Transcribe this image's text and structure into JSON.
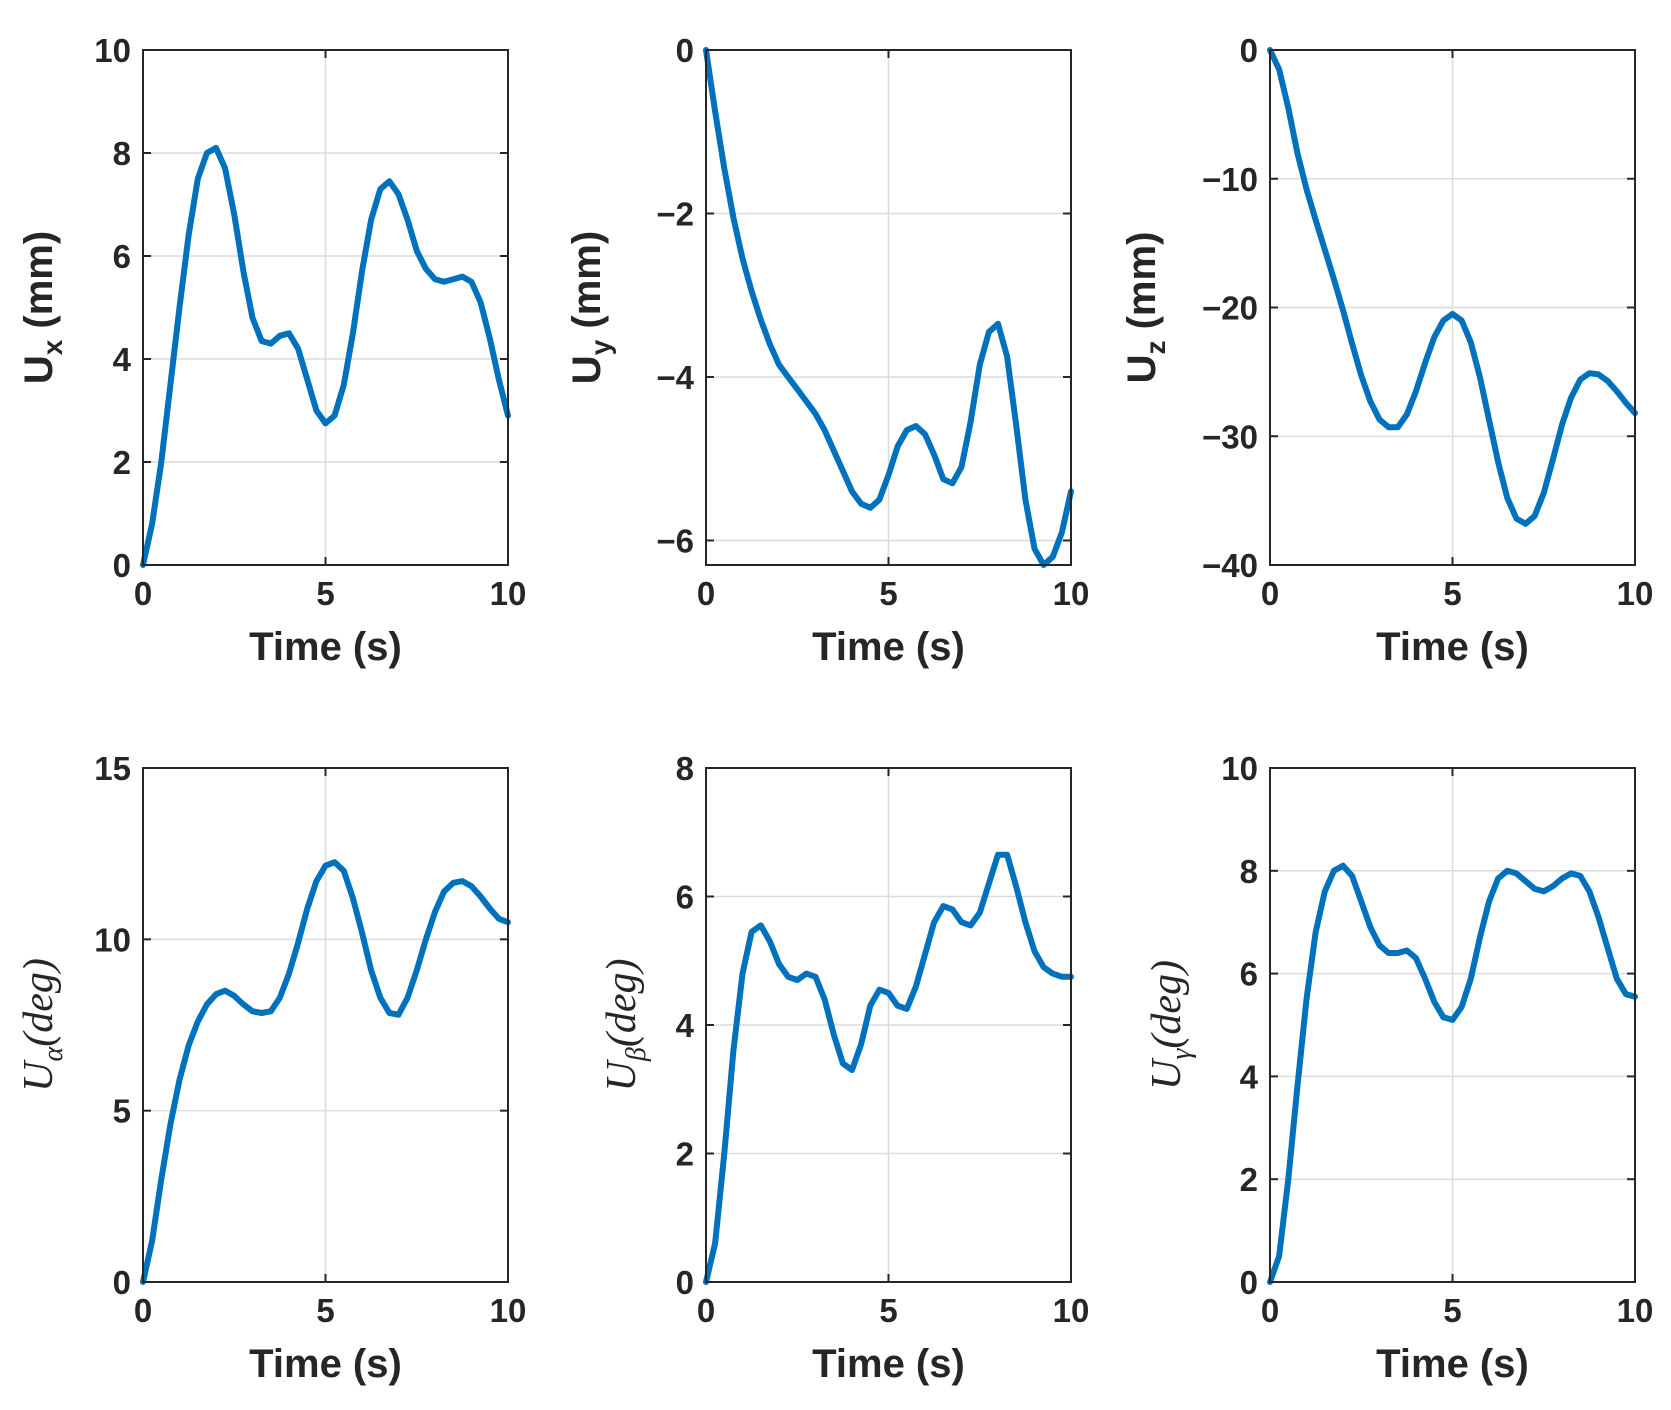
{
  "colors": {
    "series": "#0072BD",
    "axis": "#262626",
    "grid": "#dcdcdc"
  },
  "chart_data": [
    {
      "type": "line",
      "xlabel": "Time (s)",
      "ylabel": {
        "base": "U",
        "sub": "x",
        "unit": " (mm)"
      },
      "xlim": [
        0,
        10
      ],
      "ylim": [
        0,
        10
      ],
      "xticks": [
        0,
        5,
        10
      ],
      "yticks": [
        0,
        2,
        4,
        6,
        8,
        10
      ],
      "xtick_labels": [
        "0",
        "5",
        "10"
      ],
      "ytick_labels": [
        "0",
        "2",
        "4",
        "6",
        "8",
        "10"
      ],
      "grid": true,
      "series": [
        {
          "name": "Ux",
          "x": [
            0,
            0.25,
            0.5,
            0.75,
            1,
            1.25,
            1.5,
            1.75,
            2,
            2.25,
            2.5,
            2.75,
            3,
            3.25,
            3.5,
            3.75,
            4,
            4.25,
            4.5,
            4.75,
            5,
            5.25,
            5.5,
            5.75,
            6,
            6.25,
            6.5,
            6.75,
            7,
            7.25,
            7.5,
            7.75,
            8,
            8.25,
            8.5,
            8.75,
            9,
            9.25,
            9.5,
            9.75,
            10
          ],
          "y": [
            0,
            0.8,
            2,
            3.5,
            5,
            6.4,
            7.5,
            8.0,
            8.1,
            7.7,
            6.8,
            5.7,
            4.8,
            4.35,
            4.3,
            4.45,
            4.5,
            4.2,
            3.6,
            3.0,
            2.75,
            2.9,
            3.5,
            4.5,
            5.7,
            6.7,
            7.3,
            7.45,
            7.2,
            6.7,
            6.1,
            5.75,
            5.55,
            5.5,
            5.55,
            5.6,
            5.5,
            5.1,
            4.4,
            3.6,
            2.9
          ]
        }
      ]
    },
    {
      "type": "line",
      "xlabel": "Time (s)",
      "ylabel": {
        "base": "U",
        "sub": "y",
        "unit": " (mm)"
      },
      "xlim": [
        0,
        10
      ],
      "ylim": [
        -6.3,
        0
      ],
      "xticks": [
        0,
        5,
        10
      ],
      "yticks": [
        -6,
        -4,
        -2,
        0
      ],
      "xtick_labels": [
        "0",
        "5",
        "10"
      ],
      "ytick_labels": [
        "−6",
        "−4",
        "−2",
        "0"
      ],
      "grid": true,
      "series": [
        {
          "name": "Uy",
          "x": [
            0,
            0.25,
            0.5,
            0.75,
            1,
            1.25,
            1.5,
            1.75,
            2,
            2.25,
            2.5,
            2.75,
            3,
            3.25,
            3.5,
            3.75,
            4,
            4.25,
            4.5,
            4.75,
            5,
            5.25,
            5.5,
            5.75,
            6,
            6.25,
            6.5,
            6.75,
            7,
            7.25,
            7.5,
            7.75,
            8,
            8.25,
            8.5,
            8.75,
            9,
            9.25,
            9.5,
            9.75,
            10
          ],
          "y": [
            0,
            -0.75,
            -1.45,
            -2.05,
            -2.55,
            -2.95,
            -3.3,
            -3.6,
            -3.85,
            -4.0,
            -4.15,
            -4.3,
            -4.45,
            -4.65,
            -4.9,
            -5.15,
            -5.4,
            -5.55,
            -5.6,
            -5.5,
            -5.2,
            -4.85,
            -4.65,
            -4.6,
            -4.7,
            -4.95,
            -5.25,
            -5.3,
            -5.1,
            -4.55,
            -3.85,
            -3.45,
            -3.35,
            -3.75,
            -4.6,
            -5.5,
            -6.1,
            -6.3,
            -6.2,
            -5.9,
            -5.4
          ]
        }
      ]
    },
    {
      "type": "line",
      "xlabel": "Time (s)",
      "ylabel": {
        "base": "U",
        "sub": "z",
        "unit": " (mm)"
      },
      "xlim": [
        0,
        10
      ],
      "ylim": [
        -40,
        0
      ],
      "xticks": [
        0,
        5,
        10
      ],
      "yticks": [
        -40,
        -30,
        -20,
        -10,
        0
      ],
      "xtick_labels": [
        "0",
        "5",
        "10"
      ],
      "ytick_labels": [
        "−40",
        "−30",
        "−20",
        "−10",
        "0"
      ],
      "grid": true,
      "series": [
        {
          "name": "Uz",
          "x": [
            0,
            0.25,
            0.5,
            0.75,
            1,
            1.25,
            1.5,
            1.75,
            2,
            2.25,
            2.5,
            2.75,
            3,
            3.25,
            3.5,
            3.75,
            4,
            4.25,
            4.5,
            4.75,
            5,
            5.25,
            5.5,
            5.75,
            6,
            6.25,
            6.5,
            6.75,
            7,
            7.25,
            7.5,
            7.75,
            8,
            8.25,
            8.5,
            8.75,
            9,
            9.25,
            9.5,
            9.75,
            10
          ],
          "y": [
            0,
            -1.5,
            -4.5,
            -8,
            -10.8,
            -13.2,
            -15.5,
            -17.8,
            -20.2,
            -22.8,
            -25.3,
            -27.3,
            -28.7,
            -29.3,
            -29.3,
            -28.3,
            -26.5,
            -24.3,
            -22.3,
            -21,
            -20.5,
            -21,
            -22.7,
            -25.4,
            -28.7,
            -32,
            -34.8,
            -36.4,
            -36.8,
            -36.2,
            -34.4,
            -31.8,
            -29.1,
            -27,
            -25.6,
            -25.1,
            -25.2,
            -25.7,
            -26.5,
            -27.4,
            -28.2
          ]
        }
      ]
    },
    {
      "type": "line",
      "xlabel": "Time (s)",
      "ylabel": {
        "base": "U",
        "sub": "α",
        "unit": "(deg)"
      },
      "xlim": [
        0,
        10
      ],
      "ylim": [
        0,
        15
      ],
      "xticks": [
        0,
        5,
        10
      ],
      "yticks": [
        0,
        5,
        10,
        15
      ],
      "xtick_labels": [
        "0",
        "5",
        "10"
      ],
      "ytick_labels": [
        "0",
        "5",
        "10",
        "15"
      ],
      "grid": true,
      "series": [
        {
          "name": "Ualpha",
          "x": [
            0,
            0.25,
            0.5,
            0.75,
            1,
            1.25,
            1.5,
            1.75,
            2,
            2.25,
            2.5,
            2.75,
            3,
            3.25,
            3.5,
            3.75,
            4,
            4.25,
            4.5,
            4.75,
            5,
            5.25,
            5.5,
            5.75,
            6,
            6.25,
            6.5,
            6.75,
            7,
            7.25,
            7.5,
            7.75,
            8,
            8.25,
            8.5,
            8.75,
            9,
            9.25,
            9.5,
            9.75,
            10
          ],
          "y": [
            0,
            1.2,
            3,
            4.6,
            5.9,
            6.9,
            7.6,
            8.1,
            8.4,
            8.5,
            8.35,
            8.1,
            7.9,
            7.85,
            7.9,
            8.3,
            9.0,
            9.9,
            10.9,
            11.7,
            12.15,
            12.25,
            12.0,
            11.2,
            10.2,
            9.1,
            8.3,
            7.85,
            7.8,
            8.3,
            9.1,
            10.0,
            10.8,
            11.4,
            11.65,
            11.7,
            11.55,
            11.25,
            10.9,
            10.6,
            10.5
          ]
        }
      ]
    },
    {
      "type": "line",
      "xlabel": "Time (s)",
      "ylabel": {
        "base": "U",
        "sub": "β",
        "unit": "(deg)"
      },
      "xlim": [
        0,
        10
      ],
      "ylim": [
        0,
        8
      ],
      "xticks": [
        0,
        5,
        10
      ],
      "yticks": [
        0,
        2,
        4,
        6,
        8
      ],
      "xtick_labels": [
        "0",
        "5",
        "10"
      ],
      "ytick_labels": [
        "0",
        "2",
        "4",
        "6",
        "8"
      ],
      "grid": true,
      "series": [
        {
          "name": "Ubeta",
          "x": [
            0,
            0.25,
            0.5,
            0.75,
            1,
            1.25,
            1.5,
            1.75,
            2,
            2.25,
            2.5,
            2.75,
            3,
            3.25,
            3.5,
            3.75,
            4,
            4.25,
            4.5,
            4.75,
            5,
            5.25,
            5.5,
            5.75,
            6,
            6.25,
            6.5,
            6.75,
            7,
            7.25,
            7.5,
            7.75,
            8,
            8.25,
            8.5,
            8.75,
            9,
            9.25,
            9.5,
            9.75,
            10
          ],
          "y": [
            0,
            0.6,
            2.0,
            3.6,
            4.8,
            5.45,
            5.55,
            5.3,
            4.95,
            4.75,
            4.7,
            4.8,
            4.75,
            4.4,
            3.85,
            3.4,
            3.3,
            3.7,
            4.3,
            4.55,
            4.5,
            4.3,
            4.25,
            4.6,
            5.1,
            5.6,
            5.85,
            5.8,
            5.6,
            5.55,
            5.75,
            6.2,
            6.65,
            6.65,
            6.15,
            5.6,
            5.15,
            4.9,
            4.8,
            4.75,
            4.75
          ]
        }
      ]
    },
    {
      "type": "line",
      "xlabel": "Time (s)",
      "ylabel": {
        "base": "U",
        "sub": "γ",
        "unit": "(deg)"
      },
      "xlim": [
        0,
        10
      ],
      "ylim": [
        0,
        10
      ],
      "xticks": [
        0,
        5,
        10
      ],
      "yticks": [
        0,
        2,
        4,
        6,
        8,
        10
      ],
      "xtick_labels": [
        "0",
        "5",
        "10"
      ],
      "ytick_labels": [
        "0",
        "2",
        "4",
        "6",
        "8",
        "10"
      ],
      "grid": true,
      "series": [
        {
          "name": "Ugamma",
          "x": [
            0,
            0.25,
            0.5,
            0.75,
            1,
            1.25,
            1.5,
            1.75,
            2,
            2.25,
            2.5,
            2.75,
            3,
            3.25,
            3.5,
            3.75,
            4,
            4.25,
            4.5,
            4.75,
            5,
            5.25,
            5.5,
            5.75,
            6,
            6.25,
            6.5,
            6.75,
            7,
            7.25,
            7.5,
            7.75,
            8,
            8.25,
            8.5,
            8.75,
            9,
            9.25,
            9.5,
            9.75,
            10
          ],
          "y": [
            0,
            0.5,
            2.0,
            3.8,
            5.5,
            6.8,
            7.6,
            8.0,
            8.1,
            7.9,
            7.4,
            6.9,
            6.55,
            6.4,
            6.4,
            6.45,
            6.3,
            5.9,
            5.45,
            5.15,
            5.1,
            5.35,
            5.9,
            6.7,
            7.4,
            7.85,
            8.0,
            7.95,
            7.8,
            7.65,
            7.6,
            7.7,
            7.85,
            7.95,
            7.9,
            7.6,
            7.1,
            6.5,
            5.9,
            5.6,
            5.55
          ]
        }
      ]
    }
  ]
}
